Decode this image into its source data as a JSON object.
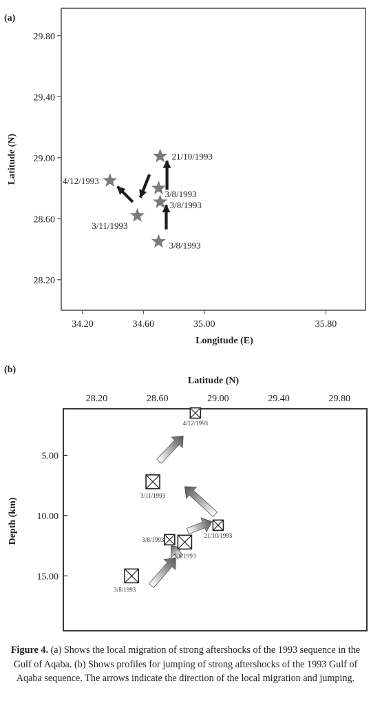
{
  "chart_data": [
    {
      "panel_label": "(a)",
      "type": "scatter",
      "xlabel": "Longitude (E)",
      "ylabel": "Latitude (N)",
      "xlim": [
        34.06,
        36.06
      ],
      "ylim": [
        28.0,
        29.98
      ],
      "x_ticks": [
        "34.20",
        "34.60",
        "35.00",
        "35.80"
      ],
      "x_tick_values": [
        34.2,
        34.6,
        35.0,
        35.8
      ],
      "y_ticks": [
        "29.80",
        "29.40",
        "29.00",
        "28.60",
        "28.20"
      ],
      "y_tick_values": [
        29.8,
        29.4,
        29.0,
        28.6,
        28.2
      ],
      "marker": "star",
      "marker_color": "#7b7b7b",
      "points": [
        {
          "x": 34.38,
          "y": 28.85,
          "label": "4/12/1993"
        },
        {
          "x": 34.56,
          "y": 28.62,
          "label": "3/11/1993"
        },
        {
          "x": 34.71,
          "y": 29.01,
          "label": "21/10/1993"
        },
        {
          "x": 34.7,
          "y": 28.8,
          "label": "3/8/1993"
        },
        {
          "x": 34.71,
          "y": 28.71,
          "label": "3/8/1993"
        },
        {
          "x": 34.7,
          "y": 28.45,
          "label": "3/8/1993"
        }
      ],
      "arrows": [
        {
          "from": [
            34.53,
            28.71
          ],
          "to": [
            34.43,
            28.81
          ]
        },
        {
          "from": [
            34.64,
            28.89
          ],
          "to": [
            34.58,
            28.74
          ]
        },
        {
          "from": [
            34.755,
            28.79
          ],
          "to": [
            34.755,
            28.98
          ]
        },
        {
          "from": [
            34.75,
            28.53
          ],
          "to": [
            34.75,
            28.69
          ]
        }
      ]
    },
    {
      "panel_label": "(b)",
      "type": "scatter",
      "xlabel": "Latitude (N)",
      "ylabel": "Depth (km)",
      "xlim": [
        27.98,
        29.98
      ],
      "ylim": [
        1.15,
        19.55
      ],
      "x_ticks": [
        "28.20",
        "28.60",
        "29.00",
        "29.40",
        "29.80"
      ],
      "x_tick_values": [
        28.2,
        28.6,
        29.0,
        29.4,
        29.8
      ],
      "y_ticks": [
        "5.00",
        "10.00",
        "15.00"
      ],
      "y_tick_values": [
        5.0,
        10.0,
        15.0
      ],
      "marker": "crossed-square",
      "points": [
        {
          "x": 28.85,
          "y": 1.5,
          "label": "4/12/1993",
          "size": "small"
        },
        {
          "x": 28.57,
          "y": 7.2,
          "label": "3/11/1993",
          "size": "large"
        },
        {
          "x": 29.0,
          "y": 10.8,
          "label": "21/10/1993",
          "size": "small"
        },
        {
          "x": 28.68,
          "y": 12.0,
          "label": "3/8/1993",
          "size": "small"
        },
        {
          "x": 28.78,
          "y": 12.2,
          "label": "3/8/1993",
          "size": "large"
        },
        {
          "x": 28.43,
          "y": 15.0,
          "label": "3/8/1993",
          "size": "large"
        }
      ],
      "arrows": [
        {
          "from": [
            28.56,
            15.8
          ],
          "to": [
            28.72,
            13.5
          ]
        },
        {
          "from": [
            28.75,
            13.4
          ],
          "to": [
            28.69,
            12.5
          ]
        },
        {
          "from": [
            28.8,
            11.3
          ],
          "to": [
            28.96,
            10.5
          ]
        },
        {
          "from": [
            28.98,
            9.9
          ],
          "to": [
            28.78,
            7.6
          ]
        },
        {
          "from": [
            28.61,
            5.5
          ],
          "to": [
            28.77,
            3.4
          ]
        }
      ]
    }
  ],
  "caption": {
    "figure_label": "Figure 4.",
    "text": "(a) Shows the local migration of strong aftershocks of the 1993 sequence in the Gulf of Aqaba. (b) Shows profiles for jumping of strong aftershocks of the 1993 Gulf of Aqaba sequence. The arrows indicate the direction of the local migration and jumping."
  }
}
